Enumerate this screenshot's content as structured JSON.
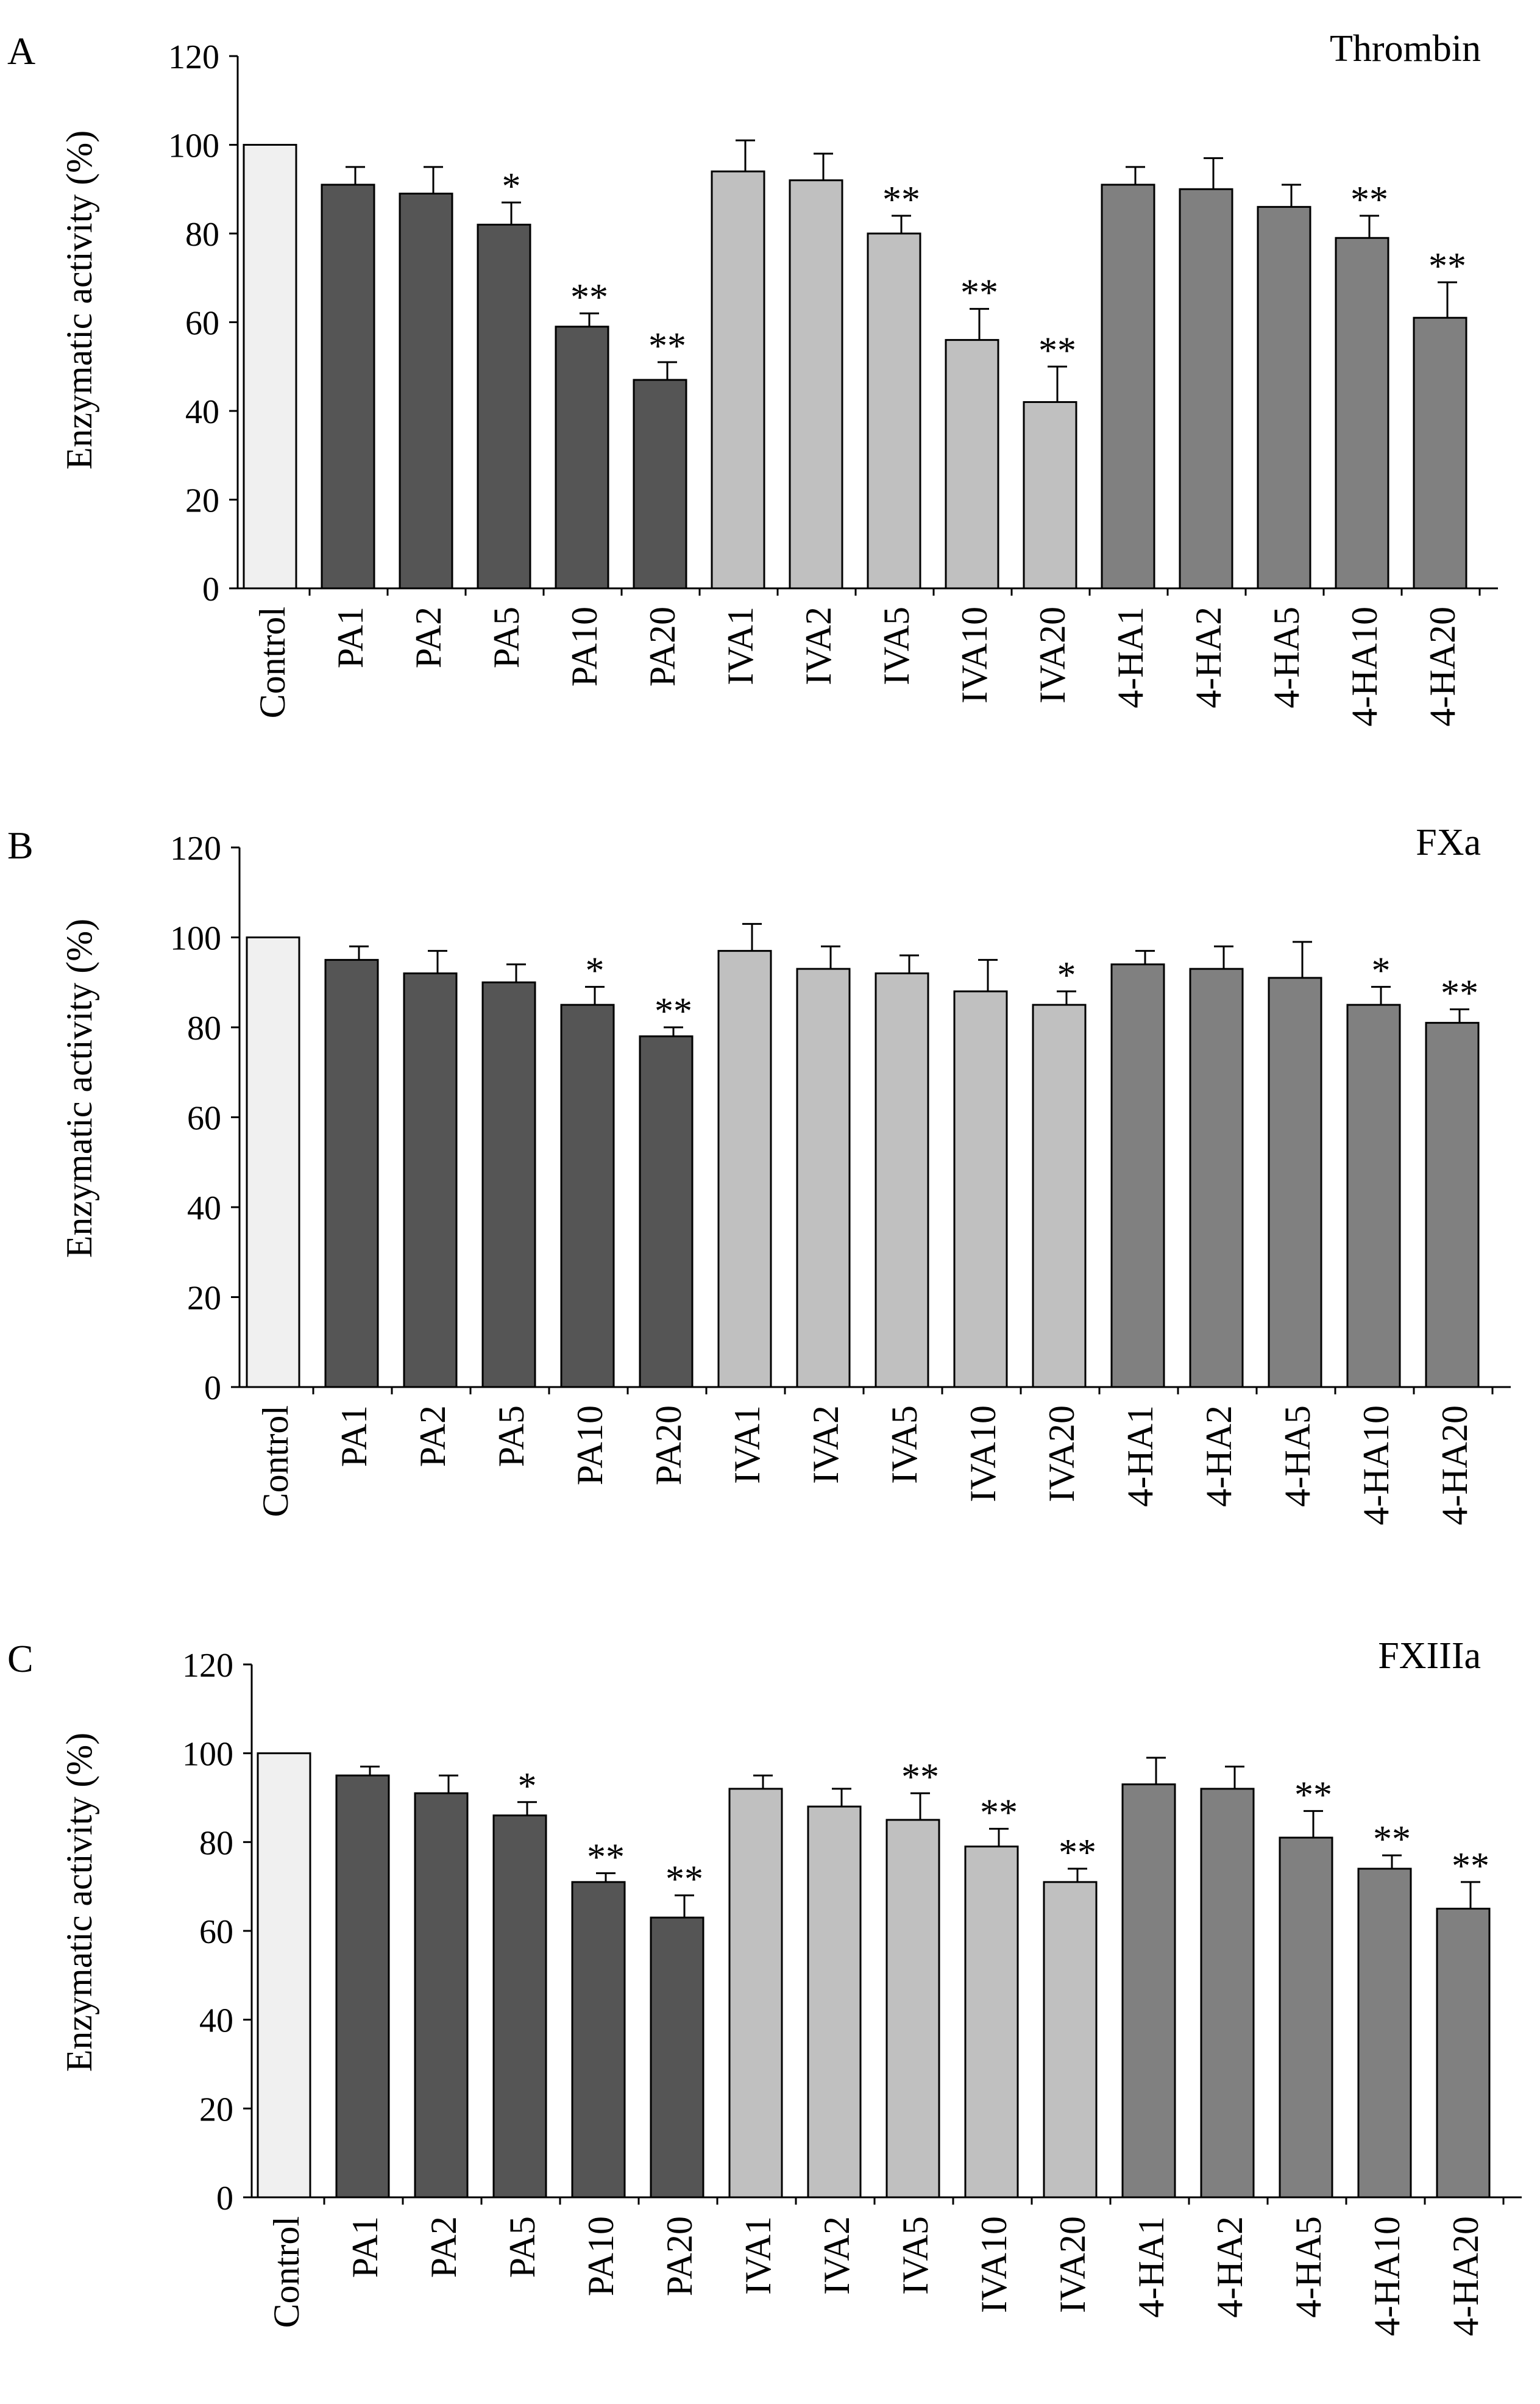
{
  "figure": {
    "series_colors": {
      "Control": "#f0f0f0",
      "PA": "#555555",
      "IVA": "#c0c0c0",
      "4-HA": "#808080"
    }
  },
  "chart_data": [
    {
      "type": "bar",
      "panel": "A",
      "title": "Thrombin",
      "xlabel": "",
      "ylabel": "Enzymatic activity (%)",
      "ylim": [
        0,
        120
      ],
      "yticks": [
        "0",
        "20",
        "40",
        "60",
        "80",
        "100",
        "120"
      ],
      "categories": [
        "Control",
        "PA1",
        "PA2",
        "PA5",
        "PA10",
        "PA20",
        "IVA1",
        "IVA2",
        "IVA5",
        "IVA10",
        "IVA20",
        "4-HA1",
        "4-HA2",
        "4-HA5",
        "4-HA10",
        "4-HA20"
      ],
      "groups": [
        "Control",
        "PA",
        "PA",
        "PA",
        "PA",
        "PA",
        "IVA",
        "IVA",
        "IVA",
        "IVA",
        "IVA",
        "4-HA",
        "4-HA",
        "4-HA",
        "4-HA",
        "4-HA"
      ],
      "values": [
        100,
        91,
        89,
        82,
        59,
        47,
        94,
        92,
        80,
        56,
        42,
        91,
        90,
        86,
        79,
        61
      ],
      "errors": [
        0,
        4,
        6,
        5,
        3,
        4,
        7,
        6,
        4,
        7,
        8,
        4,
        7,
        5,
        5,
        8
      ],
      "significance": [
        "",
        "",
        "",
        "*",
        "**",
        "**",
        "",
        "",
        "**",
        "**",
        "**",
        "",
        "",
        "",
        "**",
        "**"
      ]
    },
    {
      "type": "bar",
      "panel": "B",
      "title": "FXa",
      "xlabel": "",
      "ylabel": "Enzymatic activity (%)",
      "ylim": [
        0,
        120
      ],
      "yticks": [
        "0",
        "20",
        "40",
        "60",
        "80",
        "100",
        "120"
      ],
      "categories": [
        "Control",
        "PA1",
        "PA2",
        "PA5",
        "PA10",
        "PA20",
        "IVA1",
        "IVA2",
        "IVA5",
        "IVA10",
        "IVA20",
        "4-HA1",
        "4-HA2",
        "4-HA5",
        "4-HA10",
        "4-HA20"
      ],
      "groups": [
        "Control",
        "PA",
        "PA",
        "PA",
        "PA",
        "PA",
        "IVA",
        "IVA",
        "IVA",
        "IVA",
        "IVA",
        "4-HA",
        "4-HA",
        "4-HA",
        "4-HA",
        "4-HA"
      ],
      "values": [
        100,
        95,
        92,
        90,
        85,
        78,
        97,
        93,
        92,
        88,
        85,
        94,
        93,
        91,
        85,
        81
      ],
      "errors": [
        0,
        3,
        5,
        4,
        4,
        2,
        6,
        5,
        4,
        7,
        3,
        3,
        5,
        8,
        4,
        3
      ],
      "significance": [
        "",
        "",
        "",
        "",
        "*",
        "**",
        "",
        "",
        "",
        "",
        "*",
        "",
        "",
        "",
        "*",
        "**"
      ]
    },
    {
      "type": "bar",
      "panel": "C",
      "title": "FXIIIa",
      "xlabel": "",
      "ylabel": "Enzymatic activity (%)",
      "ylim": [
        0,
        120
      ],
      "yticks": [
        "0",
        "20",
        "40",
        "60",
        "80",
        "100",
        "120"
      ],
      "categories": [
        "Control",
        "PA1",
        "PA2",
        "PA5",
        "PA10",
        "PA20",
        "IVA1",
        "IVA2",
        "IVA5",
        "IVA10",
        "IVA20",
        "4-HA1",
        "4-HA2",
        "4-HA5",
        "4-HA10",
        "4-HA20"
      ],
      "groups": [
        "Control",
        "PA",
        "PA",
        "PA",
        "PA",
        "PA",
        "IVA",
        "IVA",
        "IVA",
        "IVA",
        "IVA",
        "4-HA",
        "4-HA",
        "4-HA",
        "4-HA",
        "4-HA"
      ],
      "values": [
        100,
        95,
        91,
        86,
        71,
        63,
        92,
        88,
        85,
        79,
        71,
        93,
        92,
        81,
        74,
        65
      ],
      "errors": [
        0,
        2,
        4,
        3,
        2,
        5,
        3,
        4,
        6,
        4,
        3,
        6,
        5,
        6,
        3,
        6
      ],
      "significance": [
        "",
        "",
        "",
        "*",
        "**",
        "**",
        "",
        "",
        "**",
        "**",
        "**",
        "",
        "",
        "**",
        "**",
        "**"
      ]
    }
  ]
}
